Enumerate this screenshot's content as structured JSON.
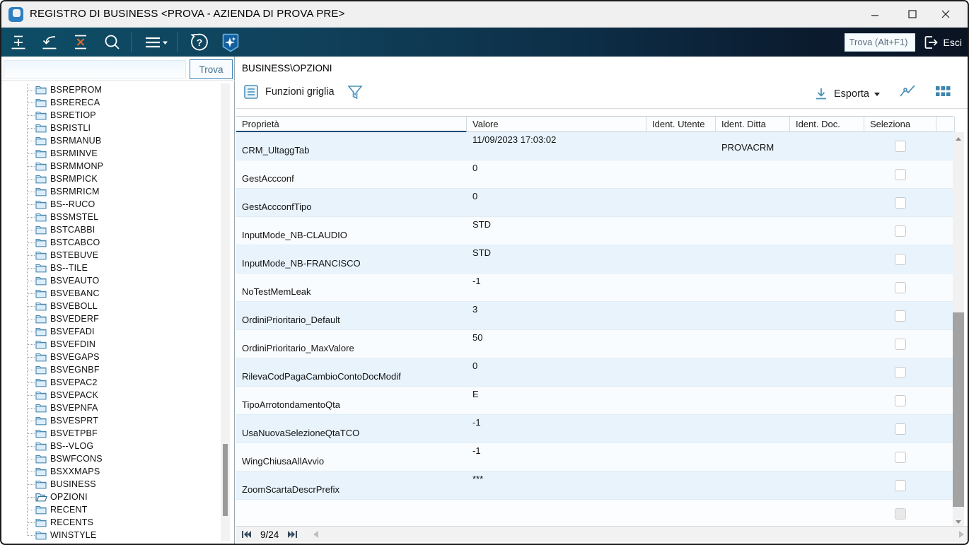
{
  "window": {
    "title": "REGISTRO DI BUSINESS <PROVA - AZIENDA DI PROVA PRE>",
    "controls": {
      "minimize": "minimize-icon",
      "maximize": "maximize-icon",
      "close": "close-icon"
    }
  },
  "toolbar": {
    "icons": [
      "insert-record-icon",
      "undo-icon",
      "delete-record-icon",
      "search-icon",
      "menu-icon",
      "help-icon",
      "ai-sparkle-icon"
    ],
    "find_placeholder": "Trova (Alt+F1)",
    "exit_label": "Esci"
  },
  "sidebar": {
    "find_button_label": "Trova",
    "search_value": "",
    "items": [
      {
        "label": "BSREPROM",
        "open": false
      },
      {
        "label": "BSRERECA",
        "open": false
      },
      {
        "label": "BSRETIOP",
        "open": false
      },
      {
        "label": "BSRISTLI",
        "open": false
      },
      {
        "label": "BSRMANUB",
        "open": false
      },
      {
        "label": "BSRMINVE",
        "open": false
      },
      {
        "label": "BSRMMONP",
        "open": false
      },
      {
        "label": "BSRMPICK",
        "open": false
      },
      {
        "label": "BSRMRICM",
        "open": false
      },
      {
        "label": "BS--RUCO",
        "open": false
      },
      {
        "label": "BSSMSTEL",
        "open": false
      },
      {
        "label": "BSTCABBI",
        "open": false
      },
      {
        "label": "BSTCABCO",
        "open": false
      },
      {
        "label": "BSTEBUVE",
        "open": false
      },
      {
        "label": "BS--TILE",
        "open": false
      },
      {
        "label": "BSVEAUTO",
        "open": false
      },
      {
        "label": "BSVEBANC",
        "open": false
      },
      {
        "label": "BSVEBOLL",
        "open": false
      },
      {
        "label": "BSVEDERF",
        "open": false
      },
      {
        "label": "BSVEFADI",
        "open": false
      },
      {
        "label": "BSVEFDIN",
        "open": false
      },
      {
        "label": "BSVEGAPS",
        "open": false
      },
      {
        "label": "BSVEGNBF",
        "open": false
      },
      {
        "label": "BSVEPAC2",
        "open": false
      },
      {
        "label": "BSVEPACK",
        "open": false
      },
      {
        "label": "BSVEPNFA",
        "open": false
      },
      {
        "label": "BSVESPRT",
        "open": false
      },
      {
        "label": "BSVETPBF",
        "open": false
      },
      {
        "label": "BS--VLOG",
        "open": false
      },
      {
        "label": "BSWFCONS",
        "open": false
      },
      {
        "label": "BSXXMAPS",
        "open": false
      },
      {
        "label": "BUSINESS",
        "open": false
      },
      {
        "label": "OPZIONI",
        "open": true
      },
      {
        "label": "RECENT",
        "open": false
      },
      {
        "label": "RECENTS",
        "open": false
      },
      {
        "label": "WINSTYLE",
        "open": false
      }
    ]
  },
  "main": {
    "breadcrumb": "BUSINESS\\OPZIONI",
    "grid_functions_label": "Funzioni griglia",
    "export_label": "Esporta",
    "right_icons": [
      "export-download-icon",
      "chart-icon",
      "grid-layout-icon"
    ]
  },
  "table": {
    "columns": [
      "Proprietà",
      "Valore",
      "Ident. Utente",
      "Ident. Ditta",
      "Ident. Doc.",
      "Seleziona"
    ],
    "rows": [
      {
        "proprieta": "CRM_UltaggTab",
        "valore": "11/09/2023 17:03:02",
        "ident_utente": "",
        "ident_ditta": "PROVACRM",
        "ident_doc": "",
        "selected": false
      },
      {
        "proprieta": "GestAccconf",
        "valore": "0",
        "ident_utente": "",
        "ident_ditta": "",
        "ident_doc": "",
        "selected": false
      },
      {
        "proprieta": "GestAccconfTipo",
        "valore": "0",
        "ident_utente": "",
        "ident_ditta": "",
        "ident_doc": "",
        "selected": false
      },
      {
        "proprieta": "InputMode_NB-CLAUDIO",
        "valore": "STD",
        "ident_utente": "",
        "ident_ditta": "",
        "ident_doc": "",
        "selected": false
      },
      {
        "proprieta": "InputMode_NB-FRANCISCO",
        "valore": "STD",
        "ident_utente": "",
        "ident_ditta": "",
        "ident_doc": "",
        "selected": false
      },
      {
        "proprieta": "NoTestMemLeak",
        "valore": "-1",
        "ident_utente": "",
        "ident_ditta": "",
        "ident_doc": "",
        "selected": false
      },
      {
        "proprieta": "OrdiniPrioritario_Default",
        "valore": "3",
        "ident_utente": "",
        "ident_ditta": "",
        "ident_doc": "",
        "selected": false
      },
      {
        "proprieta": "OrdiniPrioritario_MaxValore",
        "valore": "50",
        "ident_utente": "",
        "ident_ditta": "",
        "ident_doc": "",
        "selected": false
      },
      {
        "proprieta": "RilevaCodPagaCambioContoDocModif",
        "valore": "0",
        "ident_utente": "",
        "ident_ditta": "",
        "ident_doc": "",
        "selected": false
      },
      {
        "proprieta": "TipoArrotondamentoQta",
        "valore": "E",
        "ident_utente": "",
        "ident_ditta": "",
        "ident_doc": "",
        "selected": false
      },
      {
        "proprieta": "UsaNuovaSelezioneQtaTCO",
        "valore": "-1",
        "ident_utente": "",
        "ident_ditta": "",
        "ident_doc": "",
        "selected": false
      },
      {
        "proprieta": "WingChiusaAllAvvio",
        "valore": "-1",
        "ident_utente": "",
        "ident_ditta": "",
        "ident_doc": "",
        "selected": false
      },
      {
        "proprieta": "ZoomScartaDescrPrefix",
        "valore": "***",
        "ident_utente": "",
        "ident_ditta": "",
        "ident_doc": "",
        "selected": false
      }
    ]
  },
  "footer": {
    "record_indicator": "9/24",
    "icons": [
      "first-record-icon",
      "last-record-icon",
      "scroll-left-icon",
      "scroll-right-icon"
    ]
  },
  "colors": {
    "toolbar_teal": "#0e4d66",
    "toolbar_navy": "#0a1322",
    "accent_blue": "#3d83b8",
    "icon_steel_blue": "#3e85ad",
    "sort_underline": "#1b4a74",
    "row_alt": "#e8f3fc",
    "delete_x_orange": "#d96b2f"
  }
}
